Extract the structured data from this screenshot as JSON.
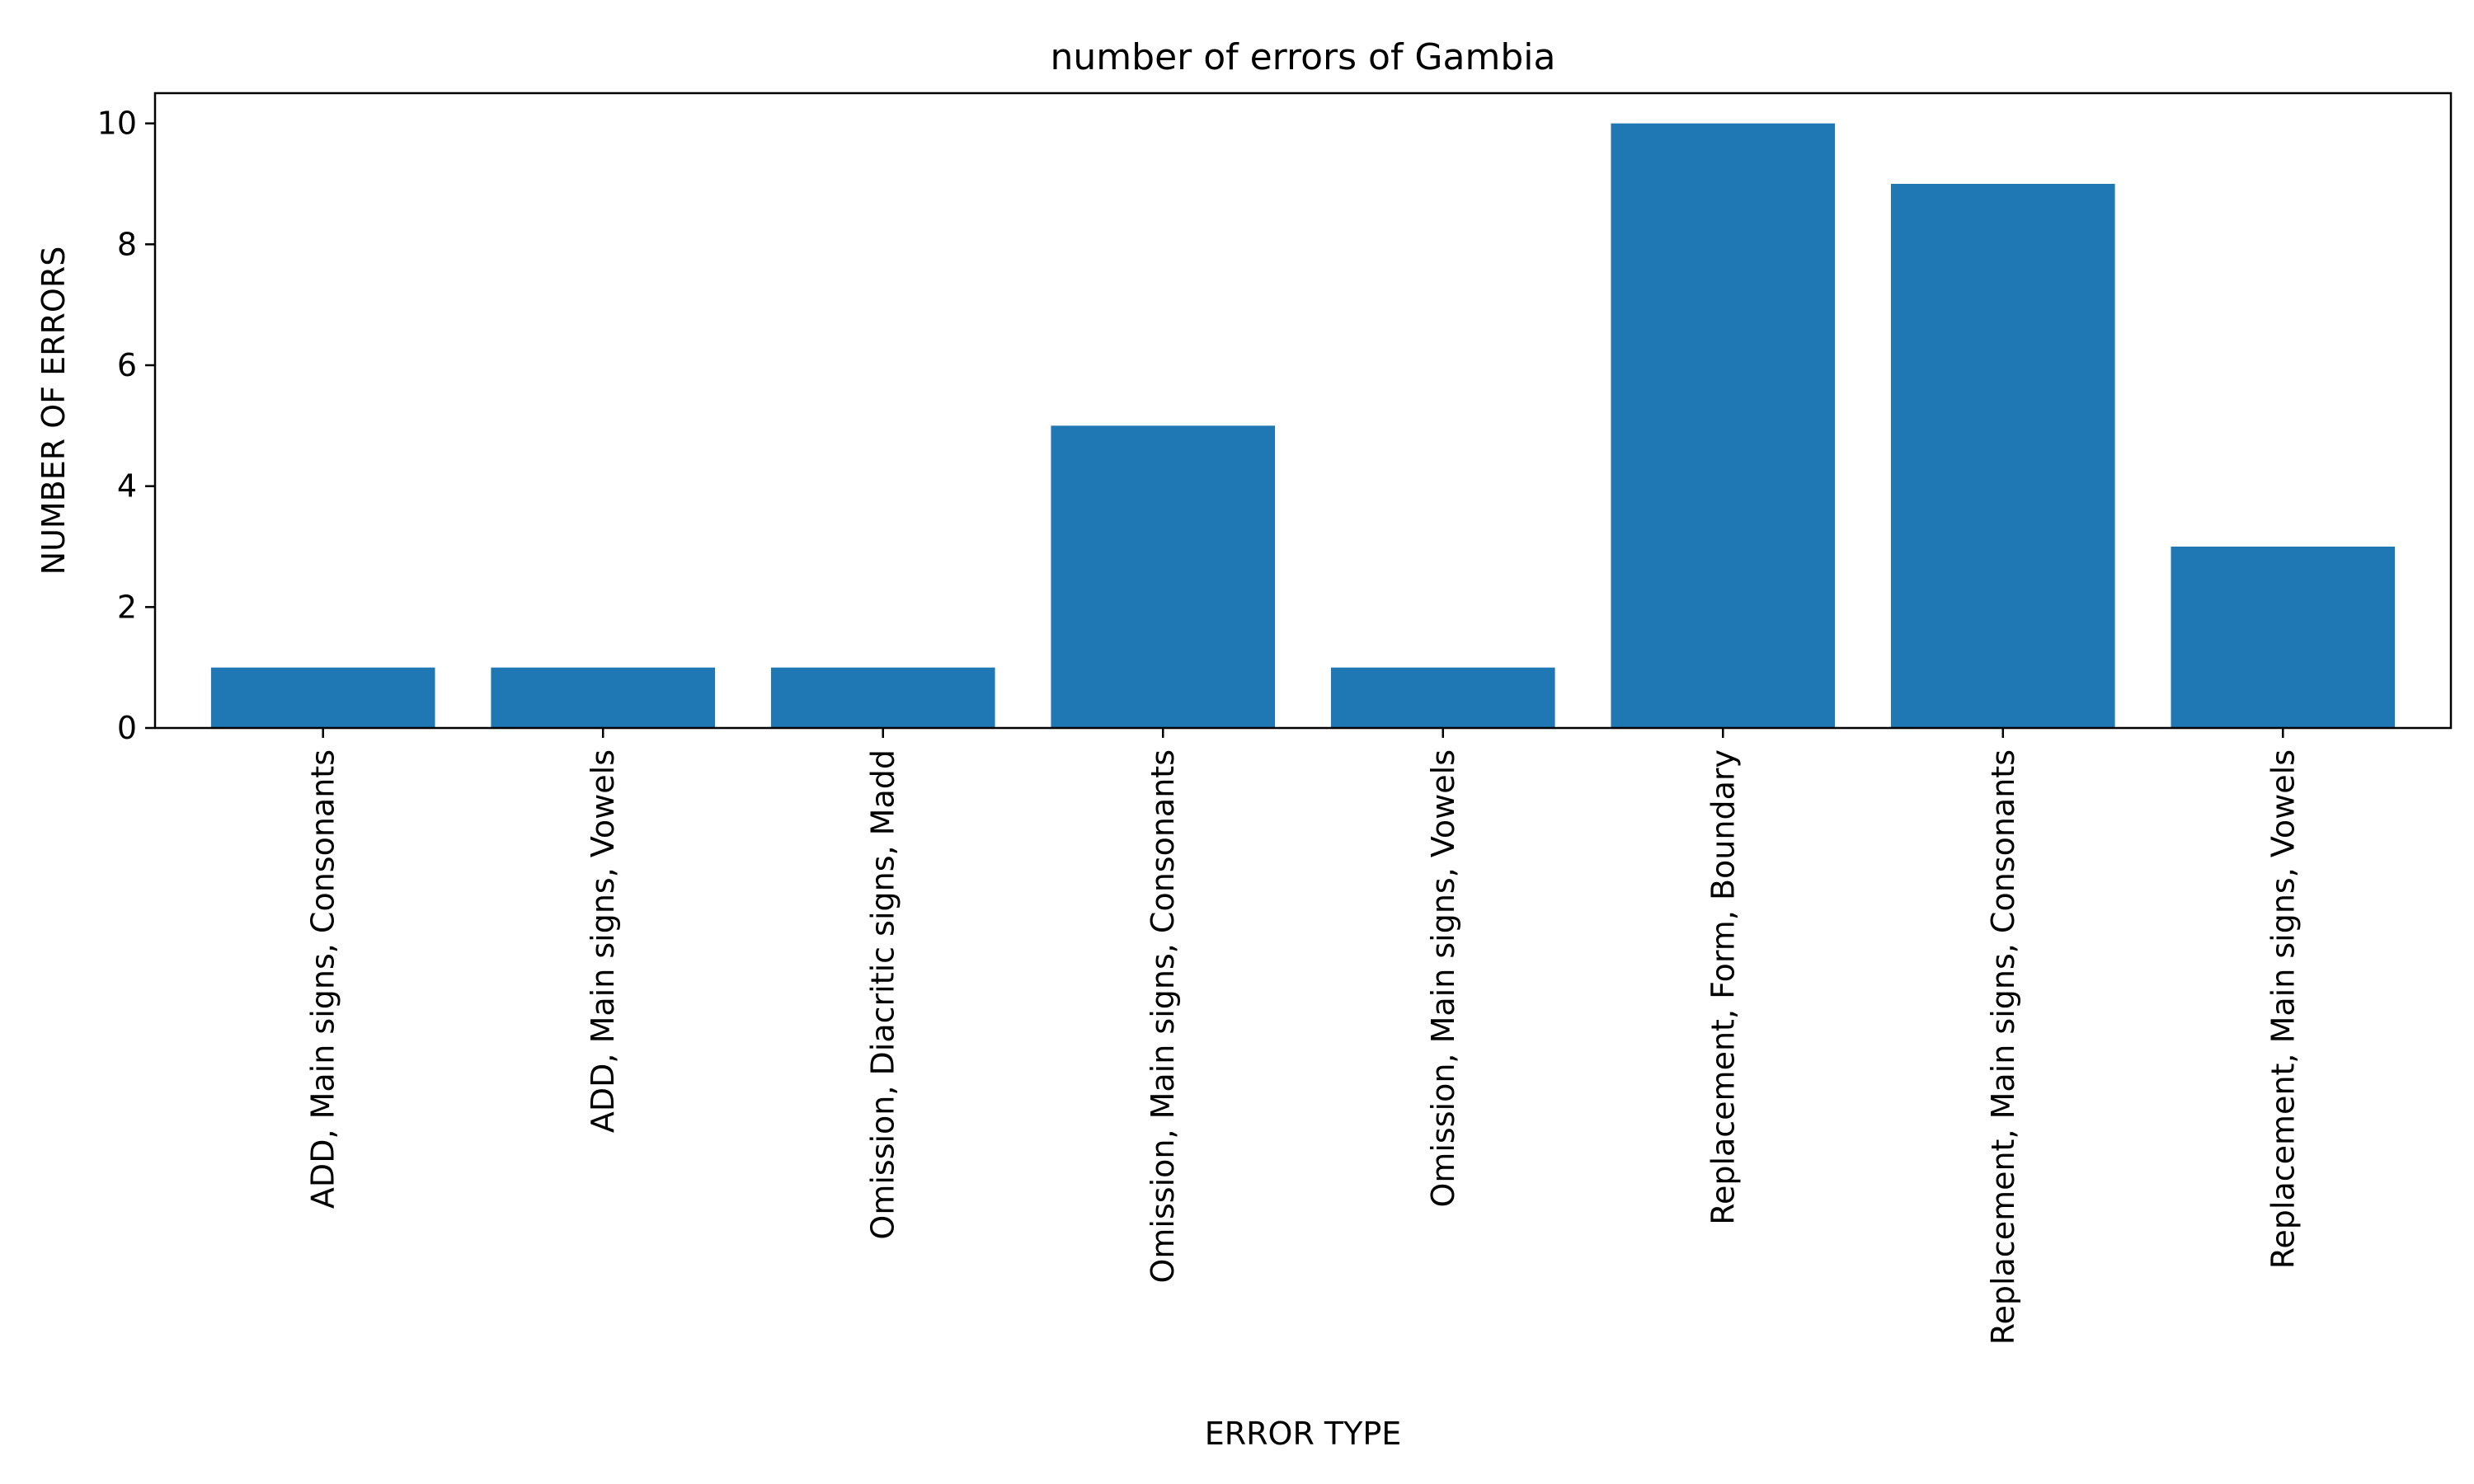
{
  "chart_data": {
    "type": "bar",
    "title": "number of errors of Gambia",
    "xlabel": "ERROR TYPE",
    "ylabel": "NUMBER OF ERRORS",
    "categories": [
      "ADD, Main signs, Consonants",
      "ADD, Main signs, Vowels",
      "Omission, Diacritic signs, Madd",
      "Omission, Main signs, Consonants",
      "Omission, Main signs, Vowels",
      "Replacement, Form, Boundary",
      "Replacement, Main signs, Consonants",
      "Replacement, Main signs, Vowels"
    ],
    "values": [
      1,
      1,
      1,
      5,
      1,
      10,
      9,
      3
    ],
    "ylim": [
      0,
      10.5
    ],
    "yticks": [
      0,
      2,
      4,
      6,
      8,
      10
    ],
    "bar_color": "#1f77b4",
    "grid": false,
    "legend": "none"
  }
}
